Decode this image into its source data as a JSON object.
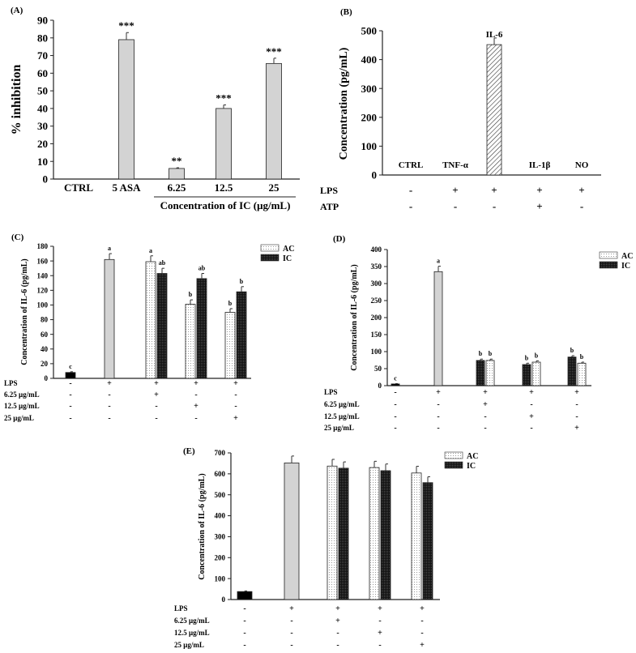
{
  "series_styles": {
    "CTRL": "#000000",
    "LPS": "#d3d3d3",
    "bar": "#d3d3d3",
    "hatched": "hatched-white",
    "AC": "dotted-white",
    "IC": "dotted-black"
  },
  "chart_data": [
    {
      "panel_label": "(A)",
      "type": "bar",
      "ylabel": "% inhibition",
      "xlabel": "Concentration of IC (μg/mL)",
      "ylim": [
        0,
        90
      ],
      "yticks": [
        0,
        10,
        20,
        30,
        40,
        50,
        60,
        70,
        80,
        90
      ],
      "categories": [
        "CTRL",
        "5 ASA",
        "6.25",
        "12.5",
        "25"
      ],
      "bars": [
        [],
        [
          {
            "series": "bar",
            "value": 79,
            "error": 4,
            "letter": "***"
          }
        ],
        [
          {
            "series": "bar",
            "value": 6,
            "error": 0.4,
            "letter": "**"
          }
        ],
        [
          {
            "series": "bar",
            "value": 40,
            "error": 2,
            "letter": "***"
          }
        ],
        [
          {
            "series": "bar",
            "value": 65.5,
            "error": 3,
            "letter": "***"
          }
        ]
      ]
    },
    {
      "panel_label": "(B)",
      "type": "bar",
      "ylabel": "Concentration (pg/mL)",
      "ylim": [
        0,
        500
      ],
      "yticks": [
        0,
        100,
        200,
        300,
        400,
        500
      ],
      "categories": [
        "CTRL",
        "TNF-α",
        "IL-6",
        "IL-1β",
        "NO"
      ],
      "bars": [
        [
          {
            "series": "hatched",
            "value": 0
          }
        ],
        [
          {
            "series": "hatched",
            "value": 0
          }
        ],
        [
          {
            "series": "hatched",
            "value": 452,
            "error": 23
          }
        ],
        [
          {
            "series": "hatched",
            "value": 0
          }
        ],
        [
          {
            "series": "hatched",
            "value": 0
          }
        ]
      ],
      "treatments": [
        {
          "label": "LPS",
          "values": [
            "-",
            "+",
            "+",
            "+",
            "+"
          ]
        },
        {
          "label": "ATP",
          "values": [
            "-",
            "-",
            "-",
            "+",
            "-"
          ]
        }
      ]
    },
    {
      "panel_label": "(C)",
      "type": "bar",
      "ylabel": "Concentration of IL-6 (pg/mL)",
      "ylim": [
        0,
        180
      ],
      "yticks": [
        0,
        20,
        40,
        60,
        80,
        100,
        120,
        140,
        160,
        180
      ],
      "legend": [
        "AC",
        "IC"
      ],
      "legend_position": "top-right",
      "bars": [
        [
          {
            "series": "CTRL",
            "value": 8,
            "error": 1,
            "letter": "c"
          }
        ],
        [
          {
            "series": "LPS",
            "value": 162,
            "error": 8,
            "letter": "a"
          }
        ],
        [
          {
            "series": "AC",
            "value": 159,
            "error": 8,
            "letter": "a"
          },
          {
            "series": "IC",
            "value": 143,
            "error": 7,
            "letter": "ab"
          }
        ],
        [
          {
            "series": "AC",
            "value": 101,
            "error": 6,
            "letter": "b"
          },
          {
            "series": "IC",
            "value": 136,
            "error": 7,
            "letter": "ab"
          }
        ],
        [
          {
            "series": "AC",
            "value": 90,
            "error": 5,
            "letter": "b"
          },
          {
            "series": "IC",
            "value": 118,
            "error": 7,
            "letter": "b"
          }
        ]
      ],
      "treatments": [
        {
          "label": "LPS",
          "values": [
            "-",
            "+",
            "+",
            "+",
            "+"
          ]
        },
        {
          "label": "6.25 μg/mL",
          "values": [
            "-",
            "-",
            "+",
            "-",
            "-"
          ]
        },
        {
          "label": "12.5 μg/mL",
          "values": [
            "-",
            "-",
            "-",
            "+",
            "-"
          ]
        },
        {
          "label": "25 μg/mL",
          "values": [
            "-",
            "-",
            "-",
            "-",
            "+"
          ]
        }
      ]
    },
    {
      "panel_label": "(D)",
      "type": "bar",
      "ylabel": "Concentration of IL-6 (pg/mL)",
      "ylim": [
        0,
        400
      ],
      "yticks": [
        0,
        50,
        100,
        150,
        200,
        250,
        300,
        350,
        400
      ],
      "legend": [
        "AC",
        "IC"
      ],
      "legend_position": "top-right",
      "bars": [
        [
          {
            "series": "CTRL",
            "value": 5,
            "error": 1,
            "letter": "c"
          }
        ],
        [
          {
            "series": "LPS",
            "value": 335,
            "error": 16,
            "letter": "a"
          }
        ],
        [
          {
            "series": "IC",
            "value": 74,
            "error": 4,
            "letter": "b"
          },
          {
            "series": "AC",
            "value": 74,
            "error": 4,
            "letter": "b"
          }
        ],
        [
          {
            "series": "IC",
            "value": 62,
            "error": 4,
            "letter": "b"
          },
          {
            "series": "AC",
            "value": 69,
            "error": 4,
            "letter": "b"
          }
        ],
        [
          {
            "series": "IC",
            "value": 84,
            "error": 4,
            "letter": "b"
          },
          {
            "series": "AC",
            "value": 66,
            "error": 3,
            "letter": "b"
          }
        ]
      ],
      "treatments": [
        {
          "label": "LPS",
          "values": [
            "-",
            "+",
            "+",
            "+",
            "+"
          ]
        },
        {
          "label": "6.25 μg/mL",
          "values": [
            "-",
            "-",
            "+",
            "-",
            "-"
          ]
        },
        {
          "label": "12.5 μg/mL",
          "values": [
            "-",
            "-",
            "-",
            "+",
            "-"
          ]
        },
        {
          "label": "25 μg/mL",
          "values": [
            "-",
            "-",
            "-",
            "-",
            "+"
          ]
        }
      ]
    },
    {
      "panel_label": "(E)",
      "type": "bar",
      "ylabel": "Concentration of IL-6 (pg/mL)",
      "ylim": [
        0,
        700
      ],
      "yticks": [
        0,
        100,
        200,
        300,
        400,
        500,
        600,
        700
      ],
      "legend": [
        "AC",
        "IC"
      ],
      "legend_position": "top-right",
      "bars": [
        [
          {
            "series": "CTRL",
            "value": 38,
            "error": 3
          }
        ],
        [
          {
            "series": "LPS",
            "value": 652,
            "error": 33
          }
        ],
        [
          {
            "series": "AC",
            "value": 637,
            "error": 32
          },
          {
            "series": "IC",
            "value": 627,
            "error": 30
          }
        ],
        [
          {
            "series": "AC",
            "value": 630,
            "error": 30
          },
          {
            "series": "IC",
            "value": 615,
            "error": 32
          }
        ],
        [
          {
            "series": "AC",
            "value": 604,
            "error": 32
          },
          {
            "series": "IC",
            "value": 558,
            "error": 28
          }
        ]
      ],
      "treatments": [
        {
          "label": "LPS",
          "values": [
            "-",
            "+",
            "+",
            "+",
            "+"
          ]
        },
        {
          "label": "6.25 μg/mL",
          "values": [
            "-",
            "-",
            "+",
            "-",
            "-"
          ]
        },
        {
          "label": "12.5 μg/mL",
          "values": [
            "-",
            "-",
            "-",
            "+",
            "-"
          ]
        },
        {
          "label": "25 μg/mL",
          "values": [
            "-",
            "-",
            "-",
            "-",
            "+"
          ]
        }
      ]
    }
  ]
}
